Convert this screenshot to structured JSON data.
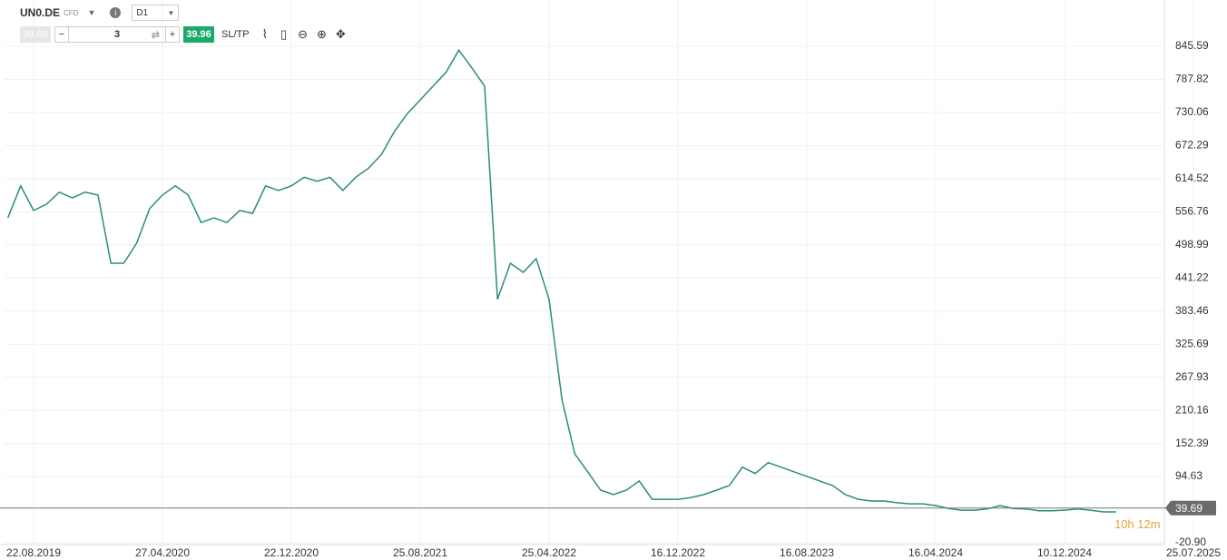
{
  "toolbar": {
    "symbol": "UN0.DE",
    "instrument_type": "CFD",
    "timeframe": "D1",
    "sell_price": "39.69",
    "volume": "3",
    "buy_price": "39.96",
    "sltp": "SL/TP"
  },
  "chart_data": {
    "type": "line",
    "color": "#2a8c7e",
    "grid": true,
    "categories": [
      null,
      null,
      "22.08.2019",
      null,
      null,
      null,
      null,
      null,
      null,
      null,
      null,
      null,
      "27.04.2020",
      null,
      null,
      null,
      null,
      null,
      null,
      null,
      null,
      null,
      "22.12.2020",
      null,
      null,
      null,
      null,
      null,
      null,
      null,
      null,
      null,
      "25.08.2021",
      null,
      null,
      null,
      null,
      null,
      null,
      null,
      null,
      null,
      "25.04.2022",
      null,
      null,
      null,
      null,
      null,
      null,
      null,
      null,
      null,
      "16.12.2022",
      null,
      null,
      null,
      null,
      null,
      null,
      null,
      null,
      null,
      "16.08.2023",
      null,
      null,
      null,
      null,
      null,
      null,
      null,
      null,
      null,
      "16.04.2024",
      null,
      null,
      null,
      null,
      null,
      null,
      null,
      null,
      null,
      "10.12.2024",
      null,
      null,
      null,
      null,
      null,
      null,
      null,
      null,
      null,
      "25.07.2025"
    ],
    "values": [
      546,
      602,
      559,
      570,
      591,
      581,
      591,
      586,
      467,
      467,
      502,
      562,
      586,
      602,
      586,
      538,
      546,
      538,
      559,
      554,
      602,
      594,
      602,
      617,
      610,
      617,
      594,
      617,
      633,
      657,
      697,
      728,
      752,
      776,
      800,
      839,
      808,
      776,
      404,
      467,
      451,
      475,
      404,
      229,
      134,
      103,
      71,
      63,
      71,
      87,
      55,
      55,
      55,
      58,
      63,
      71,
      79,
      111,
      100,
      119,
      111,
      103,
      95,
      87,
      79,
      63,
      55,
      52,
      52,
      49,
      47,
      47,
      44,
      39,
      36,
      36,
      38,
      44,
      39,
      38,
      35,
      35,
      36,
      38,
      36,
      33,
      33,
      null,
      null,
      null,
      null,
      null,
      null
    ],
    "ylim": [
      -24.07,
      926.38
    ],
    "yticks": [
      {
        "value": -20.9,
        "label": "-20.90"
      },
      94.63,
      152.39,
      210.16,
      267.93,
      325.69,
      383.46,
      441.22,
      498.99,
      556.76,
      614.52,
      672.29,
      730.06,
      787.82,
      845.59
    ],
    "last_price": 39.69,
    "last_price_label": "39.69",
    "countdown": "10h 12m"
  }
}
